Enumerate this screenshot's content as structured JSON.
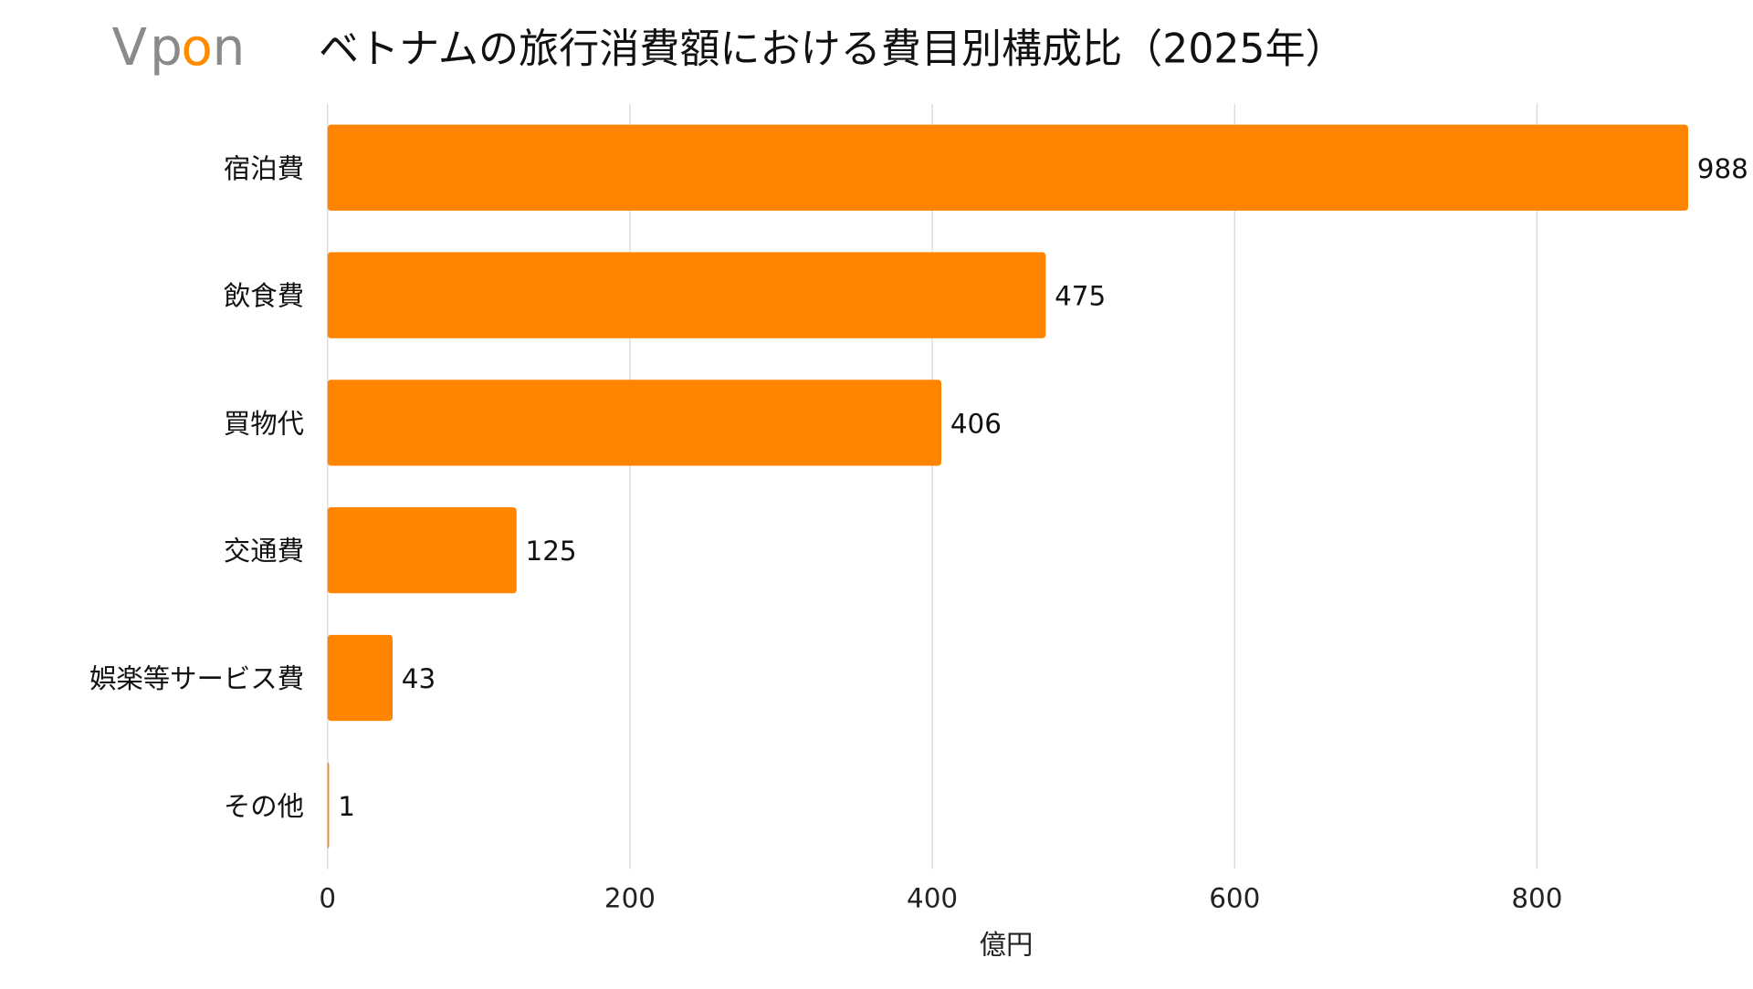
{
  "logo": {
    "text": "Vpon",
    "colors": {
      "V": "#8a8a8a",
      "p": "#8a8a8a",
      "o": "#ff8c00",
      "n": "#8a8a8a"
    }
  },
  "chart_data": {
    "type": "bar",
    "orientation": "horizontal",
    "title": "ベトナムの旅行消費額における費目別構成比（2025年）",
    "xlabel": "億円",
    "ylabel": "",
    "categories": [
      "宿泊費",
      "飲食費",
      "買物代",
      "交通費",
      "娯楽等サービス費",
      "その他"
    ],
    "values": [
      988,
      475,
      406,
      125,
      43,
      1
    ],
    "data_labels": [
      "988",
      "475",
      "406",
      "125",
      "43",
      "1"
    ],
    "xlim": [
      0,
      900
    ],
    "x_ticks": [
      0,
      200,
      400,
      600,
      800
    ],
    "x_tick_labels": [
      "0",
      "200",
      "400",
      "600",
      "800"
    ],
    "grid": "vertical",
    "bar_color": "#ff8400",
    "legend": "none"
  }
}
